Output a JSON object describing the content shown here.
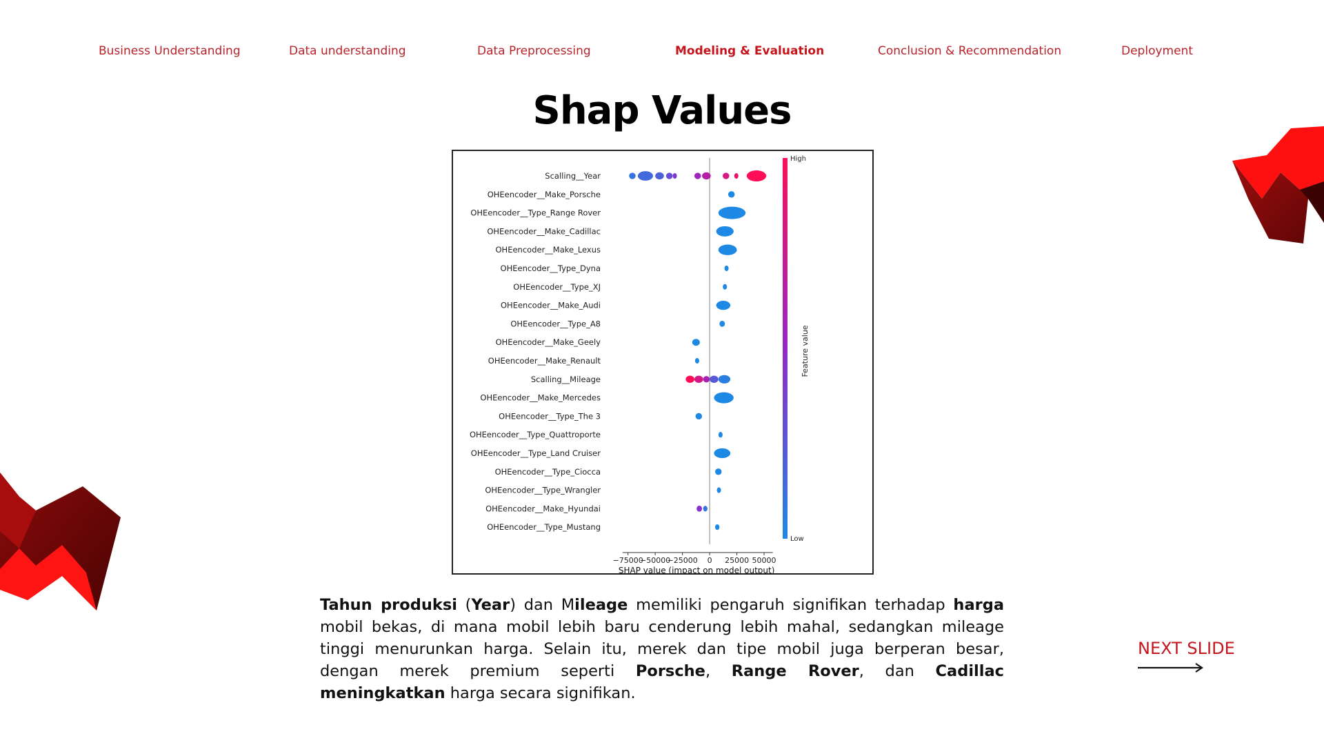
{
  "nav": {
    "items": [
      {
        "label": "Business Understanding",
        "active": false
      },
      {
        "label": "Data understanding",
        "active": false
      },
      {
        "label": "Data Preprocessing",
        "active": false
      },
      {
        "label": "Modeling & Evaluation",
        "active": true
      },
      {
        "label": "Conclusion & Recommendation",
        "active": false
      },
      {
        "label": "Deployment",
        "active": false
      }
    ]
  },
  "page": {
    "title": "Shap Values"
  },
  "colors": {
    "accent": "#c4151d",
    "shap_low": "#1e88e5",
    "shap_high": "#ff0d57"
  },
  "chart_data": {
    "type": "scatter",
    "subtype": "shap-beeswarm",
    "xlabel": "SHAP value (impact on model output)",
    "xticks": [
      -75000,
      -50000,
      -25000,
      0,
      25000,
      50000
    ],
    "xtick_labels": [
      "−75000",
      "−50000",
      "−25000",
      "0",
      "25000",
      "50000"
    ],
    "xlim": [
      -90000,
      62000
    ],
    "colorbar": {
      "label": "Feature value",
      "high": "High",
      "low": "Low"
    },
    "features": [
      {
        "name": "Scalling__Year",
        "clusters": [
          [
            -74000,
            -68000,
            0.1
          ],
          [
            -66000,
            -52000,
            0.15
          ],
          [
            -50000,
            -42000,
            0.2
          ],
          [
            -40000,
            -34000,
            0.3
          ],
          [
            -33000,
            -31000,
            0.4
          ],
          [
            -14000,
            -8000,
            0.55
          ],
          [
            -7000,
            1000,
            0.65
          ],
          [
            12000,
            18000,
            0.8
          ],
          [
            23000,
            26000,
            0.9
          ],
          [
            34000,
            52000,
            1.0
          ]
        ],
        "max_h": 8
      },
      {
        "name": "OHEencoder__Make_Porsche",
        "clusters": [
          [
            17000,
            23000,
            0.0
          ]
        ],
        "max_h": 9
      },
      {
        "name": "OHEencoder__Type_Range Rover",
        "clusters": [
          [
            8000,
            33000,
            0.0
          ]
        ],
        "max_h": 9
      },
      {
        "name": "OHEencoder__Make_Cadillac",
        "clusters": [
          [
            6000,
            22000,
            0.0
          ]
        ],
        "max_h": 9
      },
      {
        "name": "OHEencoder__Make_Lexus",
        "clusters": [
          [
            8000,
            25000,
            0.0
          ]
        ],
        "max_h": 9
      },
      {
        "name": "OHEencoder__Type_Dyna",
        "clusters": [
          [
            14000,
            17000,
            0.0
          ]
        ],
        "max_h": 8
      },
      {
        "name": "OHEencoder__Type_XJ",
        "clusters": [
          [
            13000,
            15000,
            0.0
          ]
        ],
        "max_h": 8
      },
      {
        "name": "OHEencoder__Make_Audi",
        "clusters": [
          [
            6000,
            19000,
            0.0
          ]
        ],
        "max_h": 9
      },
      {
        "name": "OHEencoder__Type_A8",
        "clusters": [
          [
            9000,
            14000,
            0.0
          ]
        ],
        "max_h": 8
      },
      {
        "name": "OHEencoder__Make_Geely",
        "clusters": [
          [
            -16000,
            -9000,
            0.0
          ]
        ],
        "max_h": 8
      },
      {
        "name": "OHEencoder__Make_Renault",
        "clusters": [
          [
            -13000,
            -10000,
            0.0
          ]
        ],
        "max_h": 8
      },
      {
        "name": "Scalling__Mileage",
        "clusters": [
          [
            -22000,
            -14000,
            1.0
          ],
          [
            -14000,
            -6000,
            0.8
          ],
          [
            -6000,
            0,
            0.6
          ],
          [
            0,
            8000,
            0.25
          ],
          [
            8000,
            19000,
            0.05
          ]
        ],
        "max_h": 9
      },
      {
        "name": "OHEencoder__Make_Mercedes",
        "clusters": [
          [
            4000,
            22000,
            0.0
          ]
        ],
        "max_h": 9
      },
      {
        "name": "OHEencoder__Type_The 3",
        "clusters": [
          [
            -13000,
            -7000,
            0.0
          ]
        ],
        "max_h": 8
      },
      {
        "name": "OHEencoder__Type_Quattroporte",
        "clusters": [
          [
            9000,
            11000,
            0.0
          ]
        ],
        "max_h": 8
      },
      {
        "name": "OHEencoder__Type_Land Cruiser",
        "clusters": [
          [
            4000,
            19000,
            0.0
          ]
        ],
        "max_h": 9
      },
      {
        "name": "OHEencoder__Type_Ciocca",
        "clusters": [
          [
            5000,
            11000,
            0.0
          ]
        ],
        "max_h": 8
      },
      {
        "name": "OHEencoder__Type_Wrangler",
        "clusters": [
          [
            7000,
            10000,
            0.0
          ]
        ],
        "max_h": 8
      },
      {
        "name": "OHEencoder__Make_Hyundai",
        "clusters": [
          [
            -12000,
            -7000,
            0.45
          ],
          [
            -6000,
            -2000,
            0.1
          ]
        ],
        "max_h": 8
      },
      {
        "name": "OHEencoder__Type_Mustang",
        "clusters": [
          [
            5000,
            9000,
            0.0
          ]
        ],
        "max_h": 8
      }
    ]
  },
  "description": {
    "segments": [
      {
        "text": "Tahun produksi",
        "bold": true
      },
      {
        "text": " (",
        "bold": false
      },
      {
        "text": "Year",
        "bold": true
      },
      {
        "text": ") dan M",
        "bold": false
      },
      {
        "text": "ileage",
        "bold": true
      },
      {
        "text": " memiliki pengaruh signifikan terhadap ",
        "bold": false
      },
      {
        "text": "harga",
        "bold": true
      },
      {
        "text": " mobil bekas, di mana mobil lebih baru cenderung lebih mahal, sedangkan mileage tinggi menurunkan harga. Selain itu, merek dan tipe mobil juga berperan besar, dengan merek premium seperti ",
        "bold": false
      },
      {
        "text": "Porsche",
        "bold": true
      },
      {
        "text": ", ",
        "bold": false
      },
      {
        "text": "Range Rover",
        "bold": true
      },
      {
        "text": ", dan ",
        "bold": false
      },
      {
        "text": "Cadillac meningkatkan",
        "bold": true
      },
      {
        "text": " harga secara signifikan.",
        "bold": false
      }
    ]
  },
  "next": {
    "label": "NEXT SLIDE"
  }
}
